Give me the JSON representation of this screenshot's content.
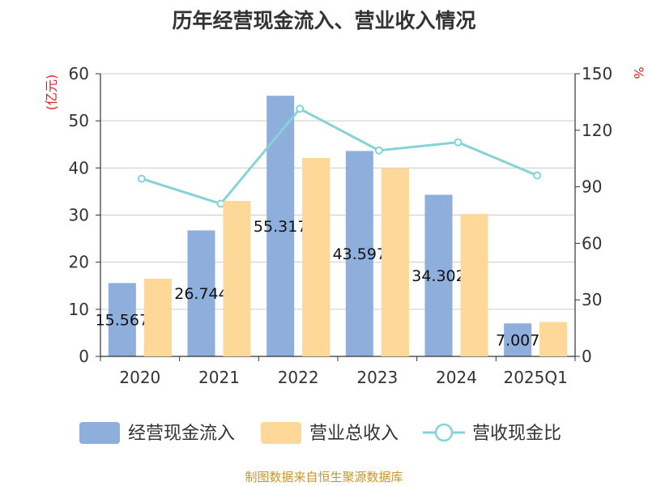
{
  "chart_data": {
    "type": "bar",
    "title": "历年经营现金流入、营业收入情况",
    "categories": [
      "2020",
      "2021",
      "2022",
      "2023",
      "2024",
      "2025Q1"
    ],
    "series": [
      {
        "name": "经营现金流入",
        "kind": "bar",
        "axis": "left",
        "values": [
          15.567,
          26.744,
          55.317,
          43.597,
          34.302,
          7.007
        ],
        "labels": [
          "15.567",
          "26.744",
          "55.317",
          "43.597",
          "34.302",
          "7.007"
        ]
      },
      {
        "name": "营业总收入",
        "kind": "bar",
        "axis": "left",
        "values": [
          16.5,
          33.0,
          42.1,
          39.9,
          30.2,
          7.3
        ]
      },
      {
        "name": "营收现金比",
        "kind": "line",
        "axis": "right",
        "values": [
          94.3,
          81.0,
          131.4,
          109.3,
          113.6,
          96.0
        ]
      }
    ],
    "yaxis_left": {
      "label": "(亿元)",
      "min": 0,
      "max": 60,
      "ticks": [
        "0",
        "10",
        "20",
        "30",
        "40",
        "50",
        "60"
      ]
    },
    "yaxis_right": {
      "label": "%",
      "min": 0,
      "max": 150,
      "ticks": [
        "0",
        "30",
        "60",
        "90",
        "120",
        "150"
      ]
    },
    "grid": true,
    "legend_position": "bottom",
    "colors": {
      "cash_inflow": "#8eaedb",
      "revenue": "#fdd898",
      "ratio": "#86d3d7",
      "axis": "#333333",
      "grid": "#cccccc",
      "unit": "#dd2222"
    }
  },
  "source_note": "制图数据来自恒生聚源数据库"
}
